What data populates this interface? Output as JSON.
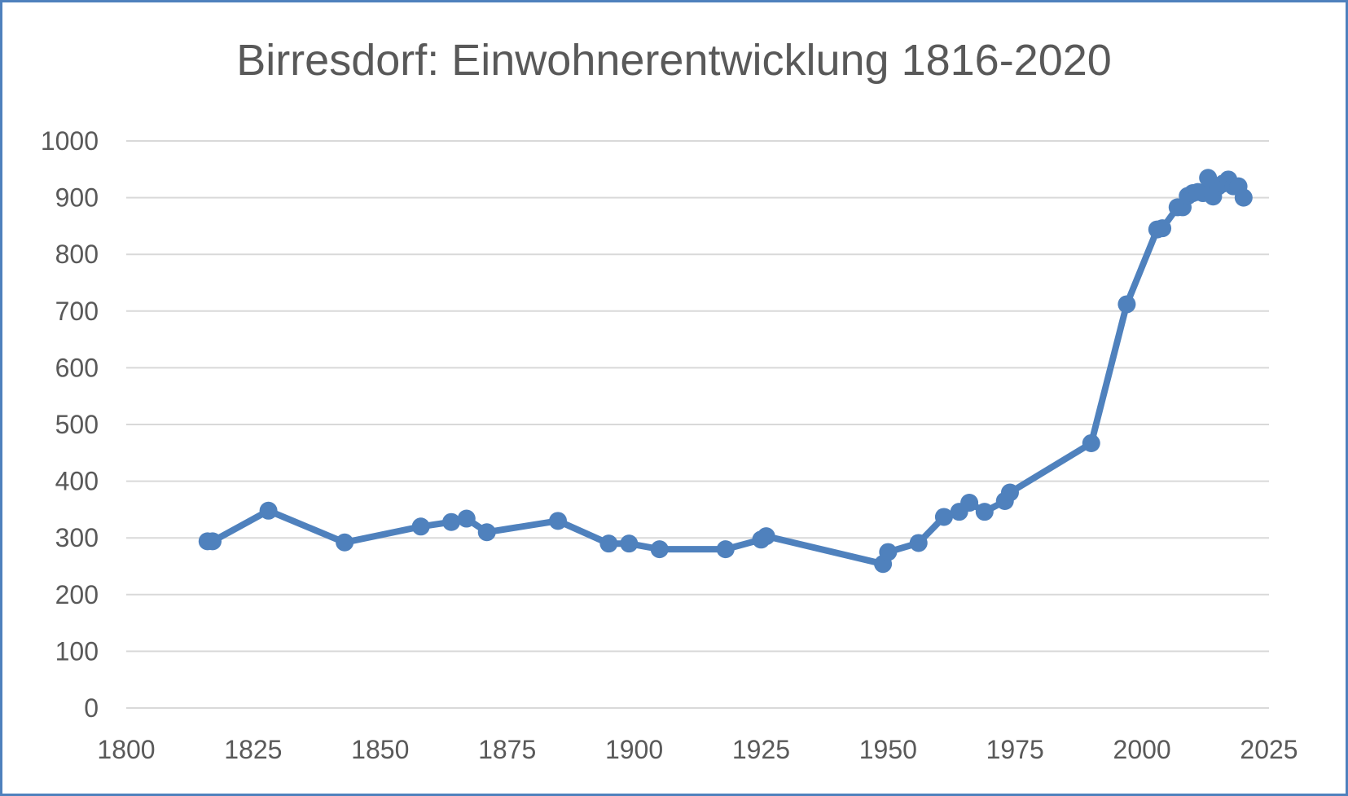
{
  "chart_data": {
    "type": "line",
    "title": "Birresdorf: Einwohnerentwicklung 1816-2020",
    "xlabel": "",
    "ylabel": "",
    "xlim": [
      1800,
      2025
    ],
    "ylim": [
      0,
      1000
    ],
    "x_ticks": [
      1800,
      1825,
      1850,
      1875,
      1900,
      1925,
      1950,
      1975,
      2000,
      2025
    ],
    "y_ticks": [
      0,
      100,
      200,
      300,
      400,
      500,
      600,
      700,
      800,
      900,
      1000
    ],
    "grid": true,
    "legend": "none",
    "color": "#4f81bd",
    "series": [
      {
        "x": [
          1816,
          1817,
          1828,
          1843,
          1858,
          1864,
          1867,
          1871,
          1885,
          1895,
          1899,
          1905,
          1918,
          1925,
          1926,
          1949,
          1950,
          1956,
          1961,
          1964,
          1966,
          1969,
          1973,
          1974,
          1990,
          1997,
          2003,
          2004,
          2007,
          2008,
          2009,
          2010,
          2011,
          2012,
          2013,
          2014,
          2015,
          2016,
          2017,
          2018,
          2019,
          2020
        ],
        "y": [
          294,
          294,
          348,
          292,
          320,
          328,
          334,
          310,
          330,
          290,
          290,
          280,
          280,
          297,
          303,
          254,
          275,
          291,
          337,
          346,
          362,
          346,
          365,
          380,
          467,
          712,
          844,
          846,
          883,
          883,
          903,
          908,
          910,
          908,
          935,
          902,
          920,
          925,
          932,
          920,
          920,
          900
        ]
      }
    ]
  }
}
